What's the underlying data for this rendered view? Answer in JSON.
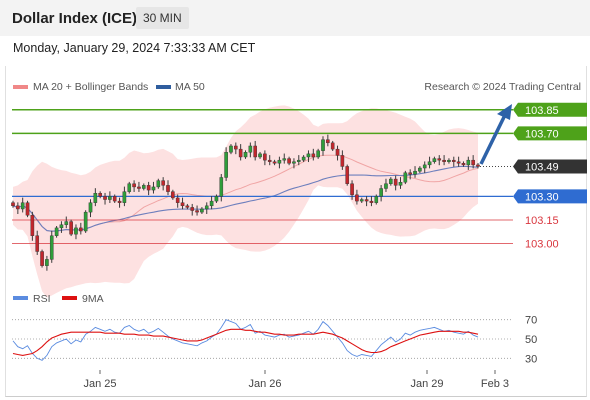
{
  "header": {
    "title": "Dollar Index (ICE)",
    "interval": "30 MIN",
    "datetime": "Monday, January 29, 2024 7:33:33 AM CET"
  },
  "legend": {
    "ma20": "MA 20 + Bollinger Bands",
    "ma50": "MA 50",
    "credit": "Research © 2024 Trading Central",
    "rsi": "RSI",
    "ma9": "9MA"
  },
  "colors": {
    "green": "#4ea21a",
    "blue": "#2f6cd1",
    "red": "#d9363e",
    "dark": "#333333",
    "band": "#fde1e1",
    "ma50": "#6d7fbd",
    "ma20": "#f0a5a5",
    "arrow": "#2e62a8"
  },
  "chart_data": {
    "type": "candlestick",
    "x_ticks": [
      "Jan 25",
      "Jan 26",
      "Jan 29",
      "Feb 3"
    ],
    "ylim": [
      102.75,
      103.95
    ],
    "levels": [
      {
        "value": 103.85,
        "label": "103.85",
        "kind": "resistance"
      },
      {
        "value": 103.7,
        "label": "103.70",
        "kind": "resistance"
      },
      {
        "value": 103.49,
        "label": "103.49",
        "kind": "current"
      },
      {
        "value": 103.3,
        "label": "103.30",
        "kind": "pivot"
      },
      {
        "value": 103.15,
        "label": "103.15",
        "kind": "support"
      },
      {
        "value": 103.0,
        "label": "103.00",
        "kind": "support"
      }
    ],
    "close": [
      103.24,
      103.22,
      103.26,
      103.18,
      103.05,
      102.95,
      102.86,
      102.9,
      103.05,
      103.1,
      103.12,
      103.14,
      103.06,
      103.1,
      103.08,
      103.2,
      103.26,
      103.32,
      103.3,
      103.28,
      103.3,
      103.27,
      103.26,
      103.33,
      103.38,
      103.36,
      103.35,
      103.37,
      103.34,
      103.36,
      103.4,
      103.37,
      103.33,
      103.29,
      103.26,
      103.24,
      103.23,
      103.21,
      103.2,
      103.22,
      103.24,
      103.27,
      103.3,
      103.42,
      103.58,
      103.62,
      103.6,
      103.55,
      103.58,
      103.62,
      103.55,
      103.57,
      103.53,
      103.52,
      103.51,
      103.53,
      103.54,
      103.51,
      103.52,
      103.53,
      103.55,
      103.57,
      103.55,
      103.59,
      103.66,
      103.64,
      103.6,
      103.56,
      103.49,
      103.38,
      103.31,
      103.27,
      103.28,
      103.27,
      103.26,
      103.3,
      103.35,
      103.38,
      103.41,
      103.37,
      103.39,
      103.45,
      103.44,
      103.46,
      103.48,
      103.5,
      103.52,
      103.54,
      103.53,
      103.52,
      103.53,
      103.52,
      103.51,
      103.5,
      103.53,
      103.5,
      103.49
    ],
    "rsi": {
      "ticks": [
        70,
        50,
        30
      ],
      "ylim": [
        20,
        80
      ],
      "values": [
        48,
        42,
        40,
        43,
        35,
        30,
        28,
        33,
        42,
        46,
        48,
        50,
        45,
        49,
        47,
        55,
        58,
        62,
        60,
        58,
        60,
        57,
        56,
        62,
        64,
        60,
        58,
        60,
        56,
        58,
        61,
        57,
        53,
        50,
        48,
        46,
        45,
        44,
        43,
        46,
        48,
        52,
        55,
        62,
        70,
        68,
        66,
        60,
        62,
        65,
        56,
        58,
        54,
        53,
        52,
        54,
        55,
        52,
        53,
        54,
        56,
        58,
        55,
        60,
        68,
        64,
        58,
        52,
        46,
        38,
        34,
        32,
        34,
        33,
        32,
        38,
        44,
        48,
        52,
        47,
        50,
        56,
        54,
        57,
        59,
        60,
        61,
        62,
        60,
        58,
        59,
        57,
        56,
        55,
        58,
        54,
        52
      ],
      "ma9": [
        35,
        34,
        33,
        34,
        35,
        38,
        42,
        47,
        51,
        53,
        55,
        56,
        57,
        57,
        57,
        57,
        57,
        57,
        57,
        56,
        56,
        56,
        56,
        55,
        55,
        55,
        54,
        54,
        54,
        53,
        53,
        53,
        52,
        51,
        50,
        49,
        48,
        48,
        48,
        49,
        51,
        53,
        55,
        57,
        59,
        60,
        60,
        60,
        59,
        59,
        58,
        57,
        57,
        56,
        55,
        55,
        54,
        54,
        54,
        55,
        55,
        55,
        55,
        56,
        57,
        56,
        55,
        53,
        51,
        48,
        45,
        42,
        39,
        37,
        36,
        36,
        37,
        39,
        42,
        44,
        46,
        48,
        50,
        52,
        54,
        55,
        56,
        57,
        58,
        58,
        58,
        58,
        58,
        57,
        57,
        56,
        55
      ]
    }
  }
}
